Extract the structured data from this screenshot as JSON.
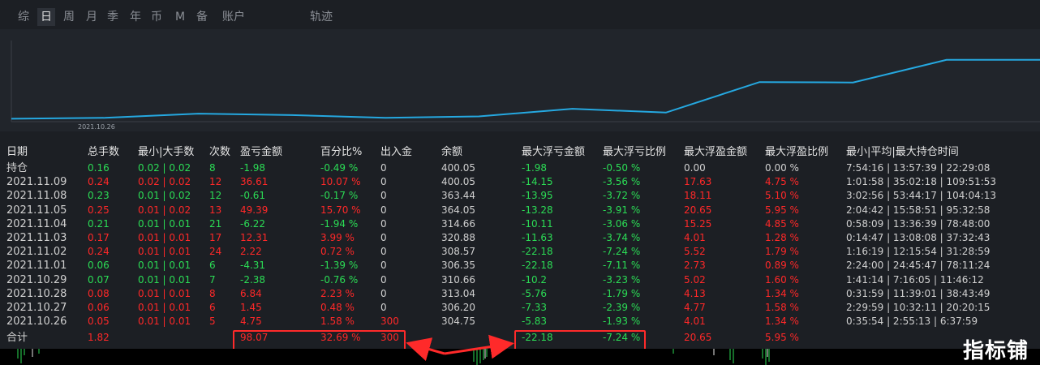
{
  "tabs": [
    "综",
    "日",
    "周",
    "月",
    "季",
    "年",
    "币",
    "M",
    "备",
    "账户",
    "轨迹"
  ],
  "active_tab": 1,
  "chart": {
    "x_label": "2021.10.26",
    "line_color": "#25a8e0"
  },
  "table": {
    "headers": [
      "日期",
      "总手数",
      "最小|大手数",
      "次数",
      "盈亏金额",
      "百分比%",
      "出入金",
      "余额",
      "最大浮亏金额",
      "最大浮亏比例",
      "最大浮盈金额",
      "最大浮盈比例",
      "最小|平均|最大持仓时间"
    ],
    "rows": [
      [
        "持仓",
        "0.16",
        "0.02 | 0.02",
        "8",
        "-1.98",
        "-0.49 %",
        "0",
        "400.05",
        "-1.98",
        "-0.50 %",
        "0.00",
        "0.00 %",
        "7:54:16 | 13:57:39 | 22:29:08"
      ],
      [
        "2021.11.09",
        "0.24",
        "0.02 | 0.02",
        "12",
        "36.61",
        "10.07 %",
        "0",
        "400.05",
        "-14.15",
        "-3.56 %",
        "17.63",
        "4.75 %",
        "1:01:58 | 35:02:18 | 109:51:53"
      ],
      [
        "2021.11.08",
        "0.23",
        "0.01 | 0.02",
        "12",
        "-0.61",
        "-0.17 %",
        "0",
        "363.44",
        "-13.95",
        "-3.72 %",
        "18.11",
        "5.10 %",
        "3:02:56 | 53:44:17 | 104:04:13"
      ],
      [
        "2021.11.05",
        "0.25",
        "0.01 | 0.02",
        "13",
        "49.39",
        "15.70 %",
        "0",
        "364.05",
        "-13.28",
        "-3.91 %",
        "20.65",
        "5.95 %",
        "2:04:42 | 15:58:51 | 95:32:58"
      ],
      [
        "2021.11.04",
        "0.21",
        "0.01 | 0.01",
        "21",
        "-6.22",
        "-1.94 %",
        "0",
        "314.66",
        "-10.11",
        "-3.06 %",
        "15.25",
        "4.85 %",
        "0:58:09 | 13:36:39 | 78:48:00"
      ],
      [
        "2021.11.03",
        "0.17",
        "0.01 | 0.01",
        "17",
        "12.31",
        "3.99 %",
        "0",
        "320.88",
        "-11.63",
        "-3.74 %",
        "4.01",
        "1.28 %",
        "0:14:47 | 13:08:08 | 37:32:43"
      ],
      [
        "2021.11.02",
        "0.24",
        "0.01 | 0.01",
        "24",
        "2.22",
        "0.72 %",
        "0",
        "308.57",
        "-22.18",
        "-7.24 %",
        "5.52",
        "1.79 %",
        "1:16:19 | 12:15:54 | 31:28:59"
      ],
      [
        "2021.11.01",
        "0.06",
        "0.01 | 0.01",
        "6",
        "-4.31",
        "-1.39 %",
        "0",
        "306.35",
        "-22.18",
        "-7.11 %",
        "2.73",
        "0.89 %",
        "2:24:00 | 24:45:47 | 78:11:24"
      ],
      [
        "2021.10.29",
        "0.07",
        "0.01 | 0.01",
        "7",
        "-2.38",
        "-0.76 %",
        "0",
        "310.66",
        "-10.2",
        "-3.23 %",
        "5.02",
        "1.60 %",
        "1:41:14 | 7:16:05 | 11:46:12"
      ],
      [
        "2021.10.28",
        "0.08",
        "0.01 | 0.01",
        "8",
        "6.84",
        "2.23 %",
        "0",
        "313.04",
        "-5.76",
        "-1.79 %",
        "4.13",
        "1.34 %",
        "0:31:59 | 11:39:01 | 38:43:49"
      ],
      [
        "2021.10.27",
        "0.06",
        "0.01 | 0.01",
        "6",
        "1.45",
        "0.48 %",
        "0",
        "306.20",
        "-7.33",
        "-2.39 %",
        "4.77",
        "1.58 %",
        "2:29:59 | 10:32:11 | 20:20:15"
      ],
      [
        "2021.10.26",
        "0.05",
        "0.01 | 0.01",
        "5",
        "4.75",
        "1.58 %",
        "300",
        "304.75",
        "-5.83",
        "-1.93 %",
        "4.01",
        "1.34 %",
        "0:35:54 | 2:55:13 | 6:37:59"
      ]
    ],
    "row_signs": [
      "neg",
      "pos",
      "neg",
      "pos",
      "neg",
      "pos",
      "pos",
      "neg",
      "neg",
      "pos",
      "pos",
      "pos"
    ],
    "total": {
      "label": "合计",
      "lots": "1.82",
      "pnl": "98.07",
      "pct": "32.69 %",
      "flow": "300",
      "max_dd": "-22.18",
      "max_dd_pct": "-7.24 %",
      "max_profit": "20.65",
      "max_profit_pct": "5.95 %"
    }
  },
  "watermark": "指标铺",
  "colors": {
    "profit": "#ff2828",
    "loss": "#2bdc55",
    "highlight": "#ff2a2a"
  }
}
